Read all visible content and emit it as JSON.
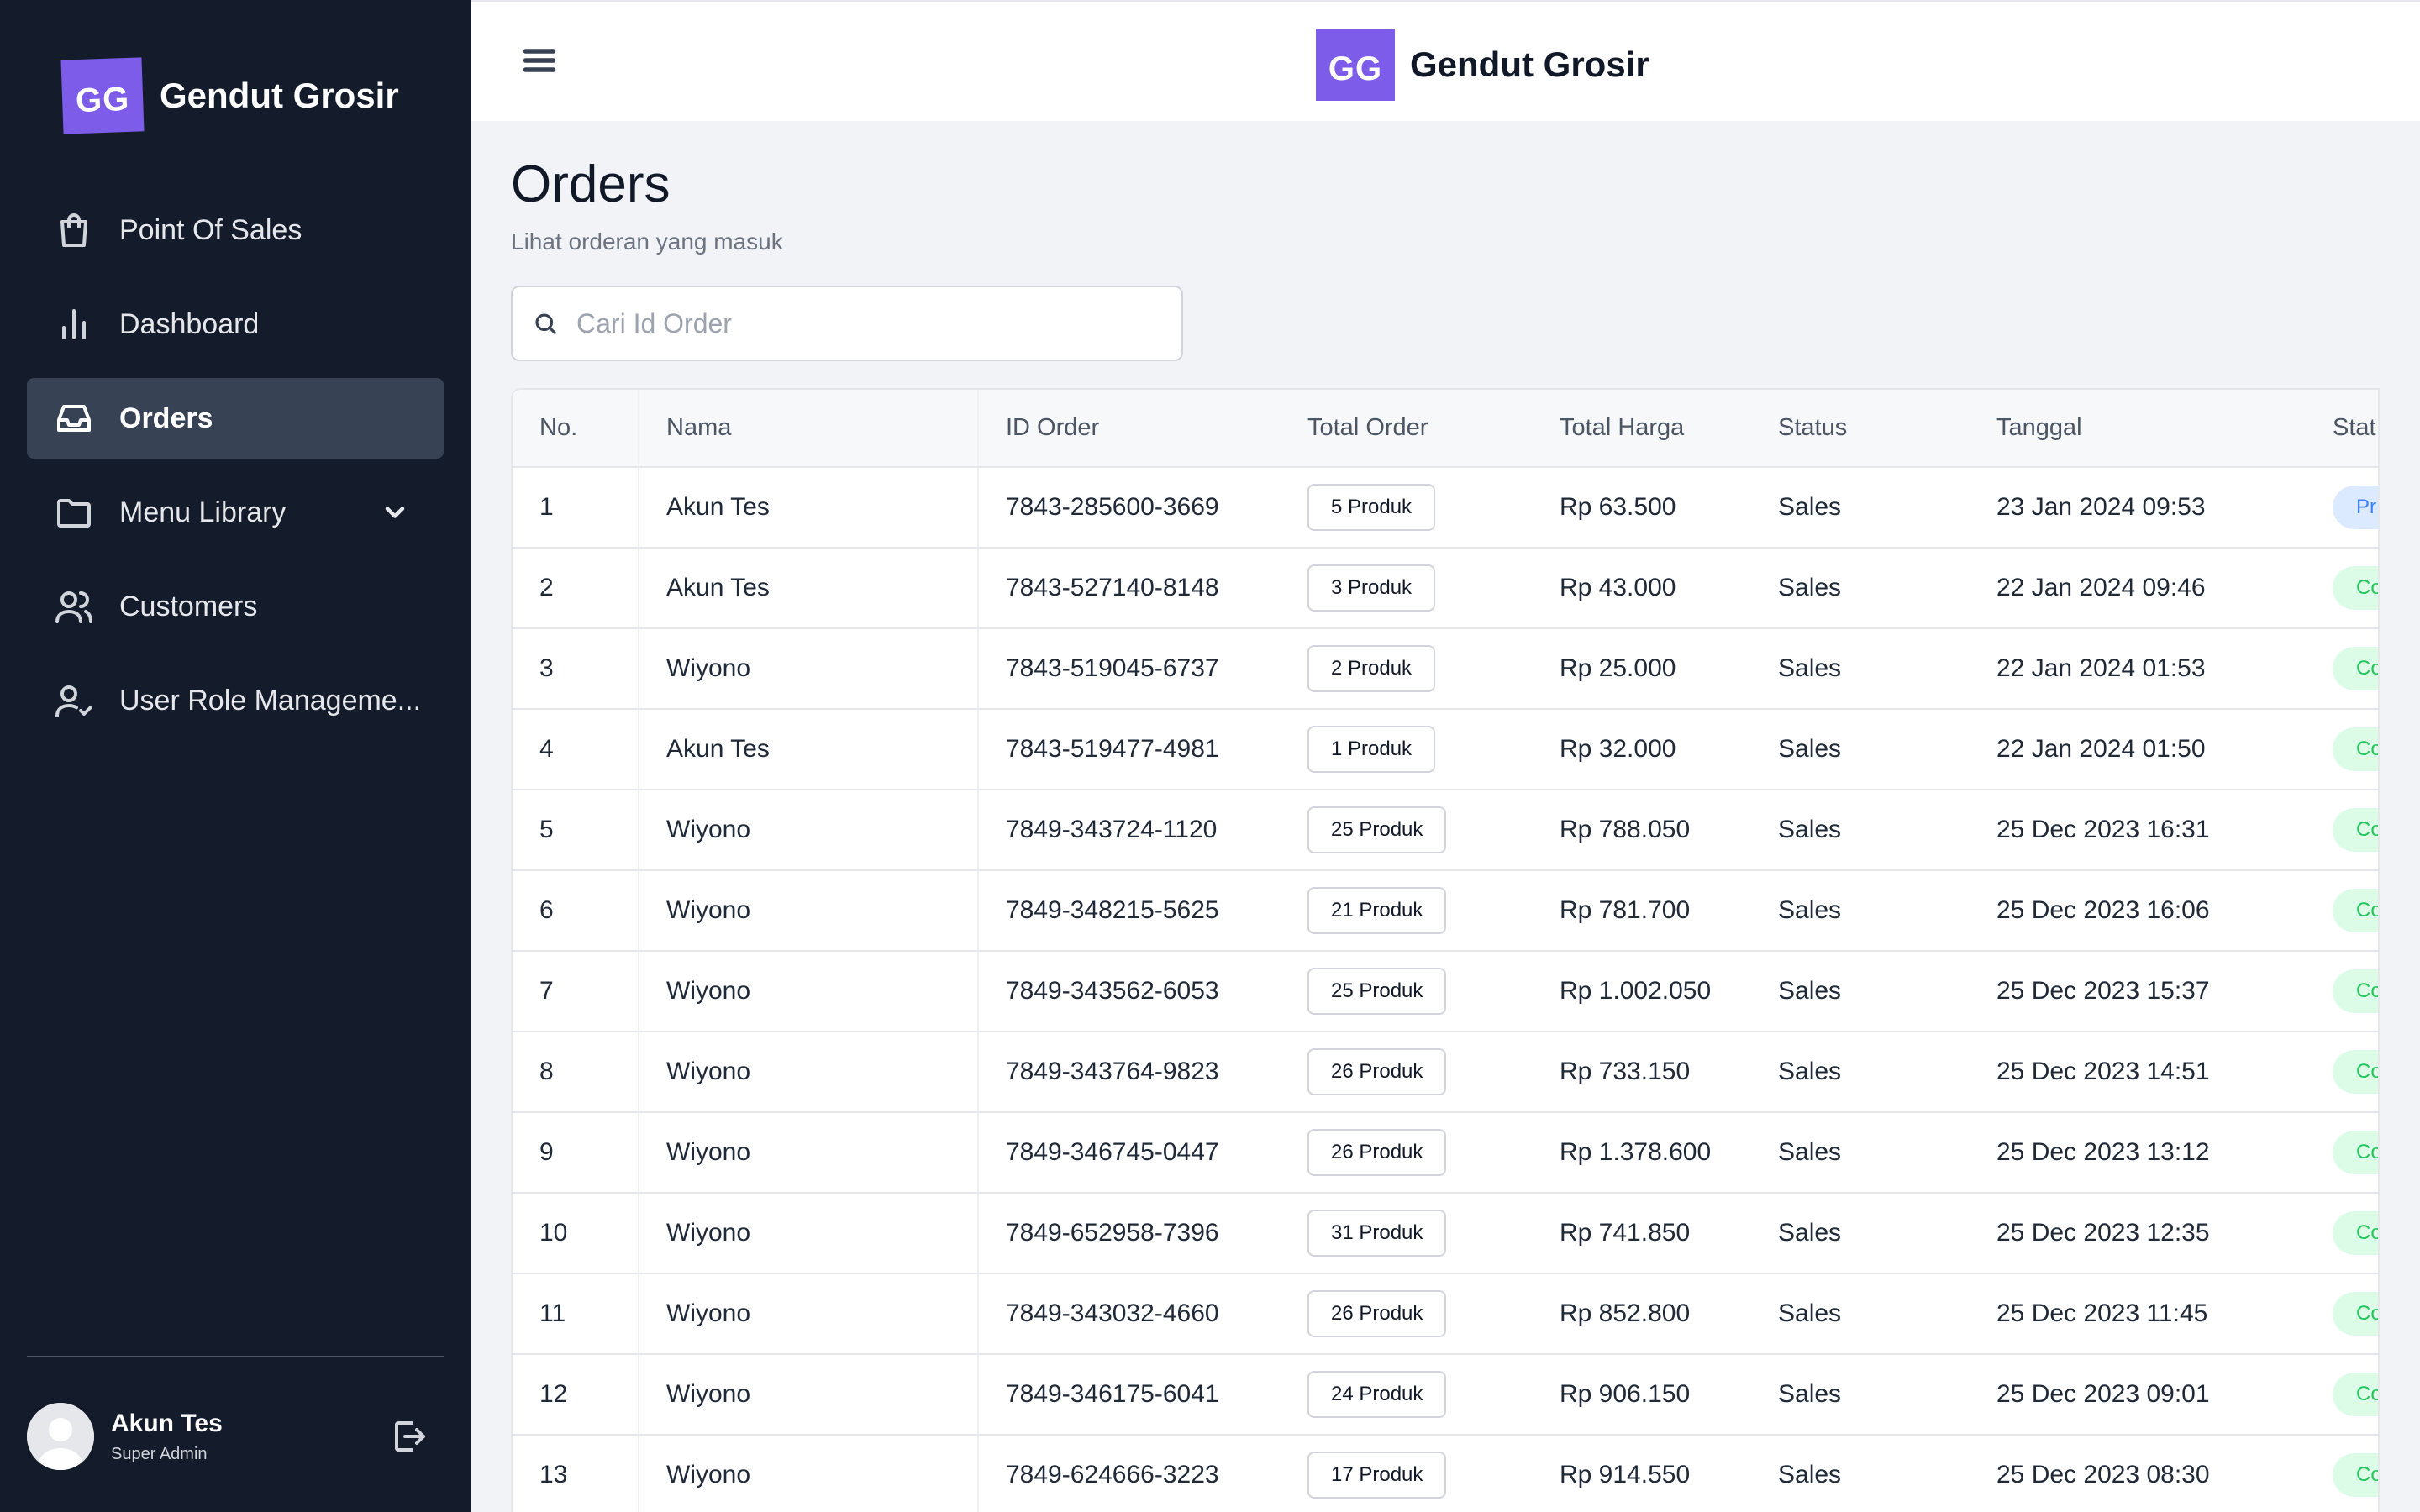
{
  "brand": {
    "initials": "GG",
    "name": "Gendut Grosir"
  },
  "sidebar": {
    "items": [
      {
        "label": "Point Of Sales",
        "icon": "shopping-bag-icon"
      },
      {
        "label": "Dashboard",
        "icon": "bar-chart-icon"
      },
      {
        "label": "Orders",
        "icon": "inbox-icon",
        "active": true
      },
      {
        "label": "Menu Library",
        "icon": "folder-icon",
        "expandable": true
      },
      {
        "label": "Customers",
        "icon": "users-icon"
      },
      {
        "label": "User Role Manageme...",
        "icon": "user-check-icon"
      }
    ],
    "user": {
      "name": "Akun Tes",
      "role": "Super Admin"
    }
  },
  "page": {
    "title": "Orders",
    "subtitle": "Lihat orderan yang masuk",
    "search_placeholder": "Cari Id Order"
  },
  "table": {
    "columns": [
      "No.",
      "Nama",
      "ID Order",
      "Total Order",
      "Total Harga",
      "Status",
      "Tanggal",
      "Stat"
    ],
    "rows": [
      {
        "no": "1",
        "nama": "Akun Tes",
        "id": "7843-285600-3669",
        "total_order": "5 Produk",
        "harga": "Rp 63.500",
        "status": "Sales",
        "tanggal": "23 Jan 2024 09:53",
        "stat": "Pr",
        "stat_kind": "process"
      },
      {
        "no": "2",
        "nama": "Akun Tes",
        "id": "7843-527140-8148",
        "total_order": "3 Produk",
        "harga": "Rp 43.000",
        "status": "Sales",
        "tanggal": "22 Jan 2024 09:46",
        "stat": "Co",
        "stat_kind": "complete"
      },
      {
        "no": "3",
        "nama": "Wiyono",
        "id": "7843-519045-6737",
        "total_order": "2 Produk",
        "harga": "Rp 25.000",
        "status": "Sales",
        "tanggal": "22 Jan 2024 01:53",
        "stat": "Co",
        "stat_kind": "complete"
      },
      {
        "no": "4",
        "nama": "Akun Tes",
        "id": "7843-519477-4981",
        "total_order": "1 Produk",
        "harga": "Rp 32.000",
        "status": "Sales",
        "tanggal": "22 Jan 2024 01:50",
        "stat": "Co",
        "stat_kind": "complete"
      },
      {
        "no": "5",
        "nama": "Wiyono",
        "id": "7849-343724-1120",
        "total_order": "25 Produk",
        "harga": "Rp 788.050",
        "status": "Sales",
        "tanggal": "25 Dec 2023 16:31",
        "stat": "Co",
        "stat_kind": "complete"
      },
      {
        "no": "6",
        "nama": "Wiyono",
        "id": "7849-348215-5625",
        "total_order": "21 Produk",
        "harga": "Rp 781.700",
        "status": "Sales",
        "tanggal": "25 Dec 2023 16:06",
        "stat": "Co",
        "stat_kind": "complete"
      },
      {
        "no": "7",
        "nama": "Wiyono",
        "id": "7849-343562-6053",
        "total_order": "25 Produk",
        "harga": "Rp 1.002.050",
        "status": "Sales",
        "tanggal": "25 Dec 2023 15:37",
        "stat": "Co",
        "stat_kind": "complete"
      },
      {
        "no": "8",
        "nama": "Wiyono",
        "id": "7849-343764-9823",
        "total_order": "26 Produk",
        "harga": "Rp 733.150",
        "status": "Sales",
        "tanggal": "25 Dec 2023 14:51",
        "stat": "Co",
        "stat_kind": "complete"
      },
      {
        "no": "9",
        "nama": "Wiyono",
        "id": "7849-346745-0447",
        "total_order": "26 Produk",
        "harga": "Rp 1.378.600",
        "status": "Sales",
        "tanggal": "25 Dec 2023 13:12",
        "stat": "Co",
        "stat_kind": "complete"
      },
      {
        "no": "10",
        "nama": "Wiyono",
        "id": "7849-652958-7396",
        "total_order": "31 Produk",
        "harga": "Rp 741.850",
        "status": "Sales",
        "tanggal": "25 Dec 2023 12:35",
        "stat": "Co",
        "stat_kind": "complete"
      },
      {
        "no": "11",
        "nama": "Wiyono",
        "id": "7849-343032-4660",
        "total_order": "26 Produk",
        "harga": "Rp 852.800",
        "status": "Sales",
        "tanggal": "25 Dec 2023 11:45",
        "stat": "Co",
        "stat_kind": "complete"
      },
      {
        "no": "12",
        "nama": "Wiyono",
        "id": "7849-346175-6041",
        "total_order": "24 Produk",
        "harga": "Rp 906.150",
        "status": "Sales",
        "tanggal": "25 Dec 2023 09:01",
        "stat": "Co",
        "stat_kind": "complete"
      },
      {
        "no": "13",
        "nama": "Wiyono",
        "id": "7849-624666-3223",
        "total_order": "17 Produk",
        "harga": "Rp 914.550",
        "status": "Sales",
        "tanggal": "25 Dec 2023 08:30",
        "stat": "Co",
        "stat_kind": "complete"
      }
    ]
  },
  "colors": {
    "sidebar_bg": "#141c2c",
    "active_item_bg": "#374254",
    "brand_purple": "#7c5ce8",
    "process_bg": "#dbeafe",
    "complete_bg": "#dcfce7"
  }
}
